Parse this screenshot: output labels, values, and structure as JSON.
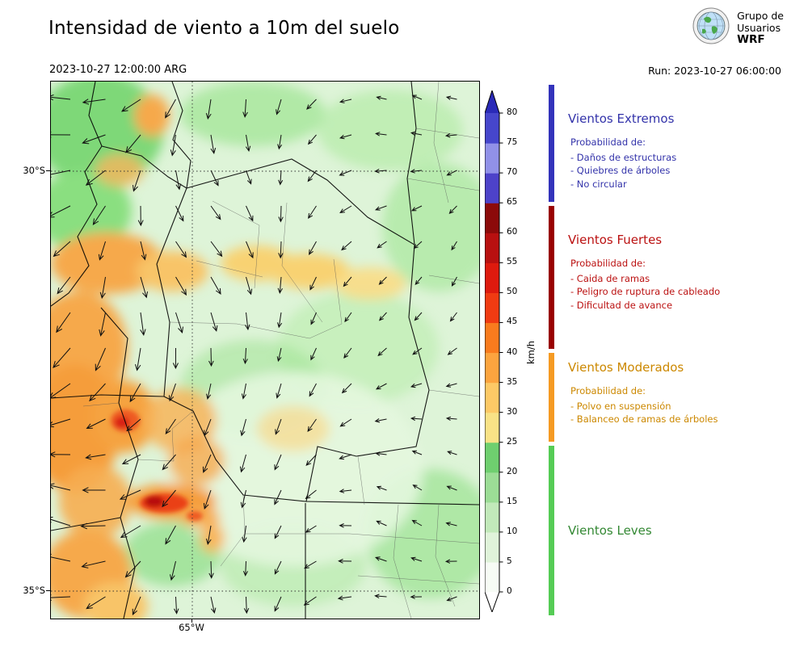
{
  "header": {
    "title": "Intensidad de viento a 10m del suelo",
    "valid_time": "2023-10-27 12:00:00 ARG",
    "run": "Run: 2023-10-27 06:00:00",
    "logo": {
      "line1": "Grupo de",
      "line2": "Usuarios",
      "line3": "WRF"
    }
  },
  "map": {
    "yticks": [
      "30°S",
      "35°S"
    ],
    "xticks": [
      "65°W"
    ]
  },
  "colorbar": {
    "unit": "km/h",
    "min": 0,
    "max": 80,
    "ticks": [
      0,
      5,
      10,
      15,
      20,
      25,
      30,
      35,
      40,
      45,
      50,
      55,
      60,
      65,
      70,
      75,
      80
    ],
    "segments": [
      {
        "from": 0,
        "to": 5,
        "color": "#f7fcf5"
      },
      {
        "from": 5,
        "to": 10,
        "color": "#e0f3da"
      },
      {
        "from": 10,
        "to": 15,
        "color": "#c2e9ba"
      },
      {
        "from": 15,
        "to": 20,
        "color": "#9cdd96"
      },
      {
        "from": 20,
        "to": 25,
        "color": "#6fcf6f"
      },
      {
        "from": 25,
        "to": 30,
        "color": "#f9e286"
      },
      {
        "from": 30,
        "to": 35,
        "color": "#fdc966"
      },
      {
        "from": 35,
        "to": 40,
        "color": "#fca43f"
      },
      {
        "from": 40,
        "to": 45,
        "color": "#f97b1e"
      },
      {
        "from": 45,
        "to": 50,
        "color": "#f03b12"
      },
      {
        "from": 50,
        "to": 55,
        "color": "#de1a0e"
      },
      {
        "from": 55,
        "to": 60,
        "color": "#b81010"
      },
      {
        "from": 60,
        "to": 65,
        "color": "#8c0a0a"
      },
      {
        "from": 65,
        "to": 70,
        "color": "#4d42c9"
      },
      {
        "from": 70,
        "to": 75,
        "color": "#9191e8"
      },
      {
        "from": 75,
        "to": 80,
        "color": "#4646cc"
      },
      {
        "from": 80,
        "to": 85,
        "color": "#2a2ab8"
      }
    ],
    "extend_over_color": "#2a2ab8",
    "extend_under_color": "#ffffff"
  },
  "legend": {
    "sections": [
      {
        "id": "extremos",
        "title": "Vientos Extremos",
        "strip_color": "#3333bb",
        "text_color": "#3333aa",
        "probability_label": "Probabilidad de:",
        "items": [
          "- Daños de estructuras",
          "- Quiebres de árboles",
          "- No circular"
        ]
      },
      {
        "id": "fuertes",
        "title": "Vientos Fuertes",
        "strip_color": "#990000",
        "text_color": "#bb1111",
        "probability_label": "Probabilidad de:",
        "items": [
          "- Caida de ramas",
          "- Peligro de ruptura de cableado",
          "- Dificultad de avance"
        ]
      },
      {
        "id": "moderados",
        "title": "Vientos Moderados",
        "strip_color": "#f59a23",
        "text_color": "#cc8800",
        "probability_label": "Probabilidad de:",
        "items": [
          "- Polvo en suspensión",
          "- Balanceo de ramas de árboles"
        ]
      },
      {
        "id": "leves",
        "title": "Vientos Leves",
        "strip_color": "#55cc55",
        "text_color": "#338833",
        "probability_label": "",
        "items": []
      }
    ]
  },
  "chart_data": {
    "type": "heatmap",
    "title": "Intensidad de viento a 10m del suelo",
    "valid_time": "2023-10-27 12:00:00 ARG",
    "run": "2023-10-27 06:00:00",
    "unit": "km/h",
    "colorbar_range": [
      0,
      80
    ],
    "colorbar_ticks": [
      0,
      5,
      10,
      15,
      20,
      25,
      30,
      35,
      40,
      45,
      50,
      55,
      60,
      65,
      70,
      75,
      80
    ],
    "lat_ticks": [
      "30°S",
      "35°S"
    ],
    "lon_ticks": [
      "65°W"
    ],
    "categories": [
      {
        "label": "Vientos Leves",
        "range_kmh": [
          0,
          25
        ]
      },
      {
        "label": "Vientos Moderados",
        "range_kmh": [
          25,
          40
        ]
      },
      {
        "label": "Vientos Fuertes",
        "range_kmh": [
          40,
          65
        ]
      },
      {
        "label": "Vientos Extremos",
        "range_kmh": [
          65,
          80
        ]
      }
    ],
    "legend_position": "right",
    "grid": "dotted graticule at 30°S, 35°S, 65°W"
  }
}
